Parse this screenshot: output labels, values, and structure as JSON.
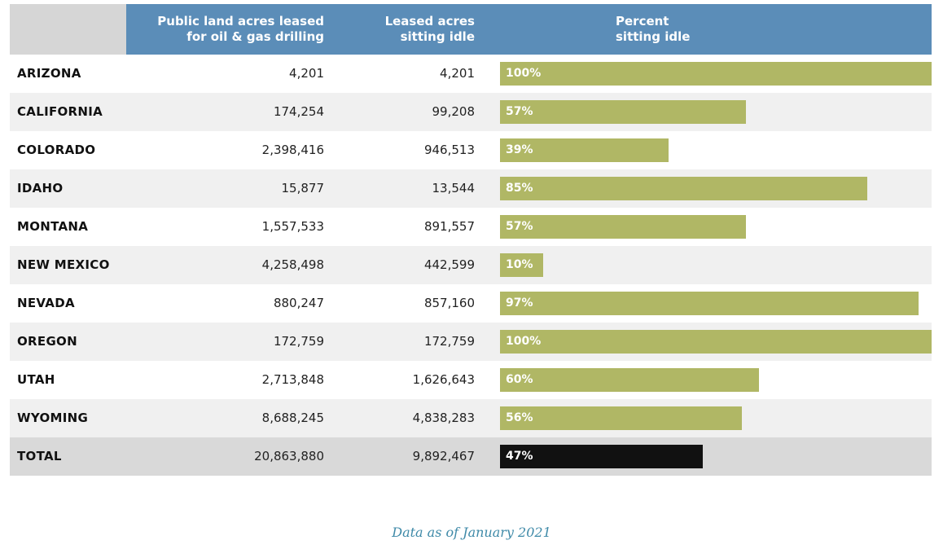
{
  "headers": {
    "col1": "Public land acres leased\nfor oil & gas drilling",
    "col2": "Leased acres\nsitting idle",
    "col3": "Percent\nsitting idle"
  },
  "footnote": "Data as of January 2021",
  "colors": {
    "header": "#5b8db8",
    "bar": "#b0b765",
    "total_bar": "#111111",
    "footnote": "#3f8aa8"
  },
  "chart_data": {
    "type": "table",
    "columns": [
      "",
      "Public land acres leased for oil & gas drilling",
      "Leased acres sitting idle",
      "Percent sitting idle"
    ],
    "rows": [
      {
        "state": "ARIZONA",
        "leased": "4,201",
        "idle": "4,201",
        "percent": 100,
        "percent_label": "100%"
      },
      {
        "state": "CALIFORNIA",
        "leased": "174,254",
        "idle": "99,208",
        "percent": 57,
        "percent_label": "57%"
      },
      {
        "state": "COLORADO",
        "leased": "2,398,416",
        "idle": "946,513",
        "percent": 39,
        "percent_label": "39%"
      },
      {
        "state": "IDAHO",
        "leased": "15,877",
        "idle": "13,544",
        "percent": 85,
        "percent_label": "85%"
      },
      {
        "state": "MONTANA",
        "leased": "1,557,533",
        "idle": "891,557",
        "percent": 57,
        "percent_label": "57%"
      },
      {
        "state": "NEW MEXICO",
        "leased": "4,258,498",
        "idle": "442,599",
        "percent": 10,
        "percent_label": "10%"
      },
      {
        "state": "NEVADA",
        "leased": "880,247",
        "idle": "857,160",
        "percent": 97,
        "percent_label": "97%"
      },
      {
        "state": "OREGON",
        "leased": "172,759",
        "idle": "172,759",
        "percent": 100,
        "percent_label": "100%"
      },
      {
        "state": "UTAH",
        "leased": "2,713,848",
        "idle": "1,626,643",
        "percent": 60,
        "percent_label": "60%"
      },
      {
        "state": "WYOMING",
        "leased": "8,688,245",
        "idle": "4,838,283",
        "percent": 56,
        "percent_label": "56%"
      }
    ],
    "total": {
      "state": "TOTAL",
      "leased": "20,863,880",
      "idle": "9,892,467",
      "percent": 47,
      "percent_label": "47%"
    }
  }
}
